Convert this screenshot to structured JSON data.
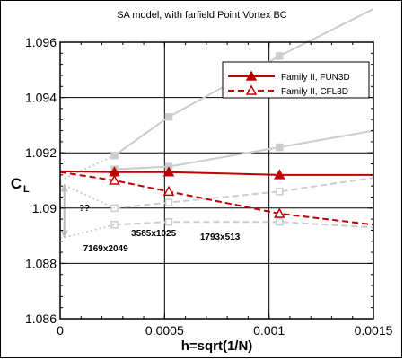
{
  "chart_data": {
    "type": "line",
    "title": "SA model, with farfield Point Vortex BC",
    "xlabel": "h=sqrt(1/N)",
    "ylabel": "C",
    "ylabel_sub": "L",
    "xlim": [
      0,
      0.0015
    ],
    "ylim": [
      1.086,
      1.096
    ],
    "x_ticks": [
      0,
      0.0005,
      0.001,
      0.0015
    ],
    "x_tick_labels": [
      "0",
      "0.0005",
      "0.001",
      "0.0015"
    ],
    "y_ticks": [
      1.086,
      1.088,
      1.09,
      1.092,
      1.094,
      1.096
    ],
    "y_tick_labels": [
      "1.086",
      "1.088",
      "1.09",
      "1.092",
      "1.094",
      "1.096"
    ],
    "grid": true,
    "legend_position": "top-right",
    "series": [
      {
        "name": "Family II, FUN3D",
        "style": "solid",
        "marker": "filled-triangle",
        "color": "#c00000",
        "x": [
          0.00026,
          0.00052,
          0.00105
        ],
        "y": [
          1.0913,
          1.0913,
          1.0912
        ],
        "line_x": [
          0,
          0.00026,
          0.00052,
          0.00105,
          0.0015
        ],
        "line_y": [
          1.09133,
          1.0913,
          1.0913,
          1.0912,
          1.0912
        ]
      },
      {
        "name": "Family II, CFL3D",
        "style": "dashed",
        "marker": "open-triangle",
        "color": "#c00000",
        "x": [
          0.00026,
          0.00052,
          0.00105
        ],
        "y": [
          1.091,
          1.0906,
          1.0898
        ],
        "line_x": [
          0,
          0.00026,
          0.00052,
          0.00105,
          0.0015
        ],
        "line_y": [
          1.0913,
          1.091,
          1.0906,
          1.0898,
          1.0894
        ]
      }
    ],
    "background_series": [
      {
        "style": "solid",
        "marker": "square",
        "color": "#cccccc",
        "x": [
          0.00026,
          0.00052,
          0.00105,
          0.0015
        ],
        "y": [
          1.0919,
          1.0933,
          1.0955,
          1.0972
        ]
      },
      {
        "style": "solid",
        "marker": "square",
        "color": "#cccccc",
        "x": [
          0.00026,
          0.00052,
          0.00105,
          0.0015
        ],
        "y": [
          1.0914,
          1.0915,
          1.0922,
          1.0928
        ]
      },
      {
        "style": "dashed",
        "marker": "open-square",
        "color": "#cccccc",
        "x": [
          0.00026,
          0.00052,
          0.00105,
          0.0015
        ],
        "y": [
          1.09,
          1.0902,
          1.0906,
          1.0911
        ]
      },
      {
        "style": "dashed",
        "marker": "open-square",
        "color": "#cccccc",
        "x": [
          0.00026,
          0.00052,
          0.00105,
          0.0015
        ],
        "y": [
          1.0894,
          1.0895,
          1.0895,
          1.0893
        ]
      },
      {
        "style": "dotted",
        "marker": "none",
        "color": "#cccccc",
        "x": [
          0,
          0.00026
        ],
        "y": [
          1.091,
          1.0919
        ]
      },
      {
        "style": "dotted",
        "marker": "none",
        "color": "#cccccc",
        "x": [
          0,
          0.00026
        ],
        "y": [
          1.0909,
          1.09
        ]
      },
      {
        "style": "dotted",
        "marker": "none",
        "color": "#cccccc",
        "x": [
          0,
          0.00026
        ],
        "y": [
          1.0889,
          1.0894
        ]
      }
    ],
    "annotations": [
      {
        "text": "7169x2049",
        "x": 0.00011,
        "y": 1.08843
      },
      {
        "text": "3585x1025",
        "x": 0.00034,
        "y": 1.08898
      },
      {
        "text": "1793x513",
        "x": 0.00067,
        "y": 1.08885
      },
      {
        "text": "??",
        "x": 9e-05,
        "y": 1.0899
      }
    ]
  }
}
